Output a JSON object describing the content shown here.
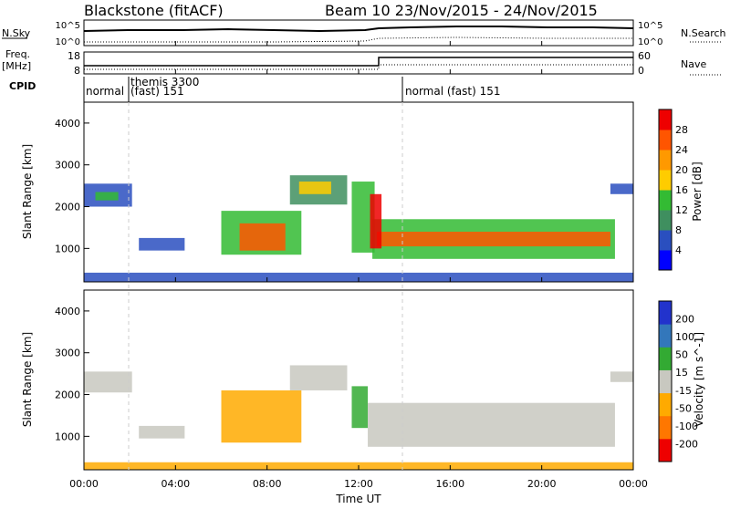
{
  "header": {
    "station": "Blackstone (fitACF)",
    "beam_date": "Beam 10  23/Nov/2015 - 24/Nov/2015"
  },
  "side_labels": {
    "nsky": "N.Sky",
    "freq_top": "Freq.",
    "freq_unit": "[MHz]",
    "cpid": "CPID",
    "nsearch": "N.Search",
    "nave": "Nave"
  },
  "noise_panel": {
    "left_ticks": [
      "10^5",
      "10^0"
    ],
    "right_ticks": [
      "10^5",
      "10^0"
    ]
  },
  "freq_panel": {
    "left_ticks": [
      "18",
      "8"
    ],
    "right_ticks": [
      "60",
      "0"
    ]
  },
  "cpid_panel": {
    "labels": [
      "normal",
      "themis 3300",
      "(fast) 151",
      "normal (fast) 151"
    ]
  },
  "colors": {
    "power": [
      "#0000ff",
      "#2a4fbf",
      "#3f8f5f",
      "#33bb33",
      "#ffcc00",
      "#ff9900",
      "#ff5500",
      "#ee0000"
    ],
    "velocity": [
      "#2233cc",
      "#3377bb",
      "#33aa33",
      "#c8c8c0",
      "#ffaa00",
      "#ff7700",
      "#ee0000"
    ]
  },
  "chart_data": {
    "type": "heatmap",
    "xlabel": "Time UT",
    "x_ticks": [
      "00:00",
      "04:00",
      "08:00",
      "12:00",
      "16:00",
      "20:00",
      "00:00"
    ],
    "xlim_hours": [
      0,
      24
    ],
    "panels": [
      {
        "name": "power",
        "ylabel": "Slant Range [km]",
        "y_ticks": [
          1000,
          2000,
          3000,
          4000
        ],
        "ylim": [
          200,
          4500
        ],
        "colorbar_label": "Power [dB]",
        "colorbar_ticks": [
          "4",
          "8",
          "12",
          "16",
          "20",
          "24",
          "28"
        ],
        "regions": [
          {
            "t0": 0.0,
            "t1": 2.1,
            "r0": 2000,
            "r1": 2550,
            "c": 1
          },
          {
            "t0": 0.5,
            "t1": 1.5,
            "r0": 2150,
            "r1": 2350,
            "c": 3
          },
          {
            "t0": 2.4,
            "t1": 4.4,
            "r0": 950,
            "r1": 1250,
            "c": 1
          },
          {
            "t0": 6.0,
            "t1": 9.5,
            "r0": 850,
            "r1": 1900,
            "c": 3
          },
          {
            "t0": 6.8,
            "t1": 8.8,
            "r0": 950,
            "r1": 1600,
            "c": 6
          },
          {
            "t0": 9.0,
            "t1": 11.5,
            "r0": 2050,
            "r1": 2750,
            "c": 2
          },
          {
            "t0": 9.4,
            "t1": 10.8,
            "r0": 2300,
            "r1": 2600,
            "c": 4
          },
          {
            "t0": 11.7,
            "t1": 12.7,
            "r0": 900,
            "r1": 2600,
            "c": 3
          },
          {
            "t0": 12.6,
            "t1": 23.2,
            "r0": 750,
            "r1": 1700,
            "c": 3
          },
          {
            "t0": 12.8,
            "t1": 23.0,
            "r0": 1050,
            "r1": 1400,
            "c": 6
          },
          {
            "t0": 12.5,
            "t1": 13.0,
            "r0": 1000,
            "r1": 2300,
            "c": 7
          },
          {
            "t0": 0.0,
            "t1": 24.0,
            "r0": 200,
            "r1": 420,
            "c": 1
          },
          {
            "t0": 23.0,
            "t1": 24.0,
            "r0": 2300,
            "r1": 2550,
            "c": 1
          }
        ]
      },
      {
        "name": "velocity",
        "ylabel": "Slant Range [km]",
        "y_ticks": [
          1000,
          2000,
          3000,
          4000
        ],
        "ylim": [
          200,
          4500
        ],
        "colorbar_label": "Velocity [m s^-1]",
        "colorbar_ticks": [
          "200",
          "100",
          "50",
          "15",
          "-15",
          "-50",
          "-100",
          "-200"
        ],
        "regions": [
          {
            "t0": 0.0,
            "t1": 2.1,
            "r0": 2050,
            "r1": 2550,
            "c": 3
          },
          {
            "t0": 2.4,
            "t1": 4.4,
            "r0": 950,
            "r1": 1250,
            "c": 3
          },
          {
            "t0": 6.0,
            "t1": 9.5,
            "r0": 850,
            "r1": 2100,
            "c": 4
          },
          {
            "t0": 9.0,
            "t1": 11.5,
            "r0": 2100,
            "r1": 2700,
            "c": 3
          },
          {
            "t0": 11.7,
            "t1": 12.4,
            "r0": 1200,
            "r1": 2200,
            "c": 2
          },
          {
            "t0": 12.4,
            "t1": 23.2,
            "r0": 750,
            "r1": 1800,
            "c": 3
          },
          {
            "t0": 0.0,
            "t1": 24.0,
            "r0": 200,
            "r1": 380,
            "c": 4
          },
          {
            "t0": 23.0,
            "t1": 24.0,
            "r0": 2300,
            "r1": 2550,
            "c": 3
          }
        ]
      }
    ]
  }
}
